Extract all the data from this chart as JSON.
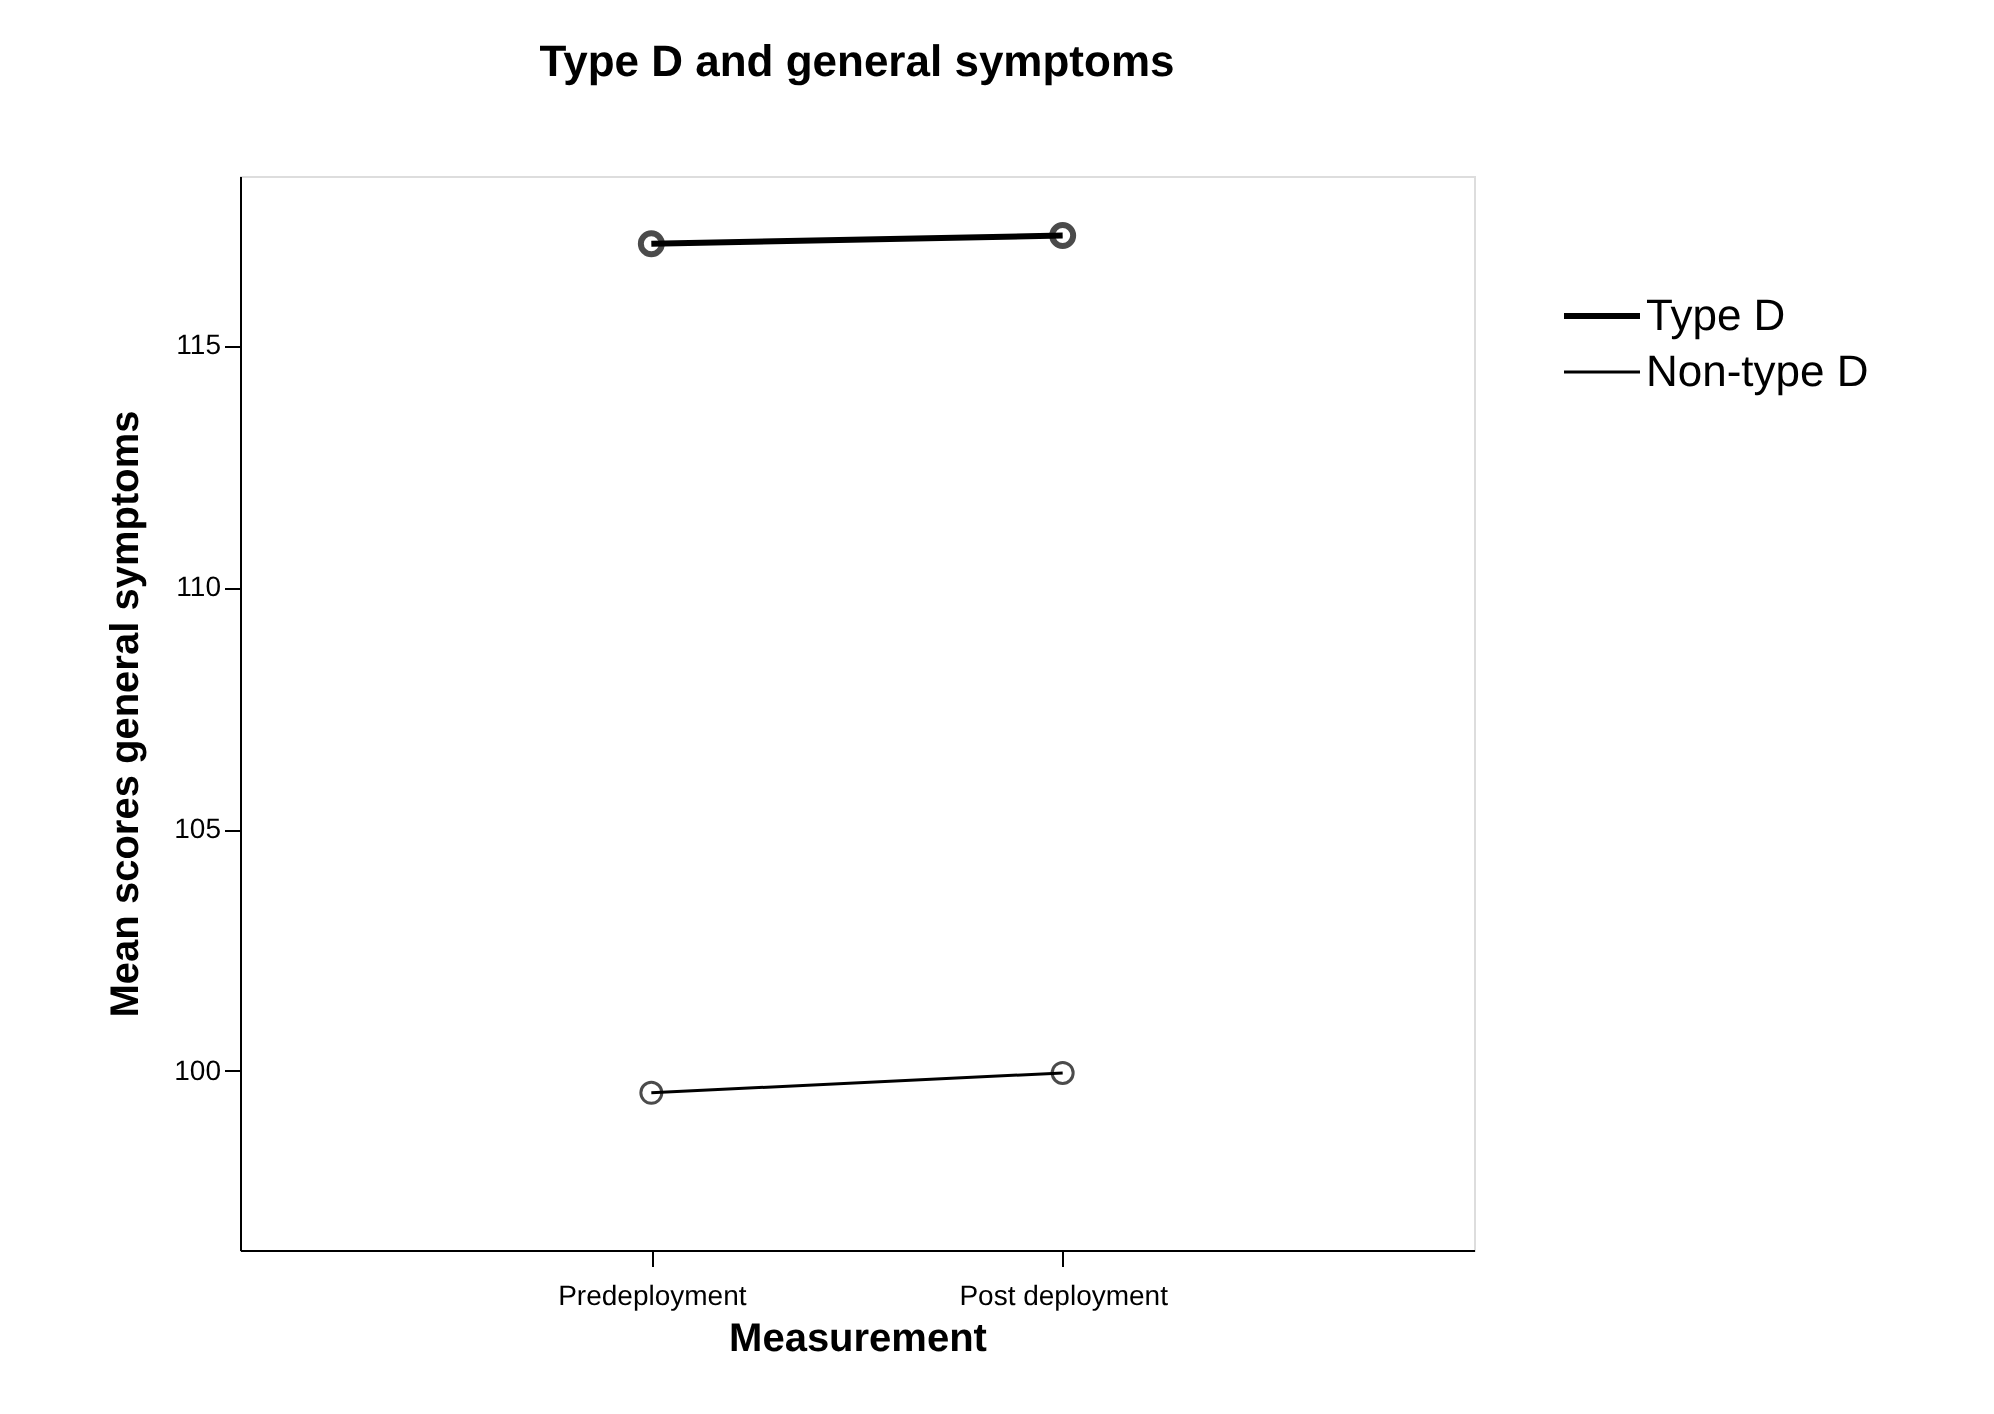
{
  "chart_data": {
    "type": "line",
    "title": "Type D and  general symptoms",
    "xlabel": "Measurement",
    "ylabel": "Mean scores general symptoms",
    "categories": [
      "Predeployment",
      "Post deployment"
    ],
    "series": [
      {
        "name": "Type D",
        "color": "#000000",
        "values": [
          117.1,
          117.27
        ]
      },
      {
        "name": "Non-type D",
        "color": "#000000",
        "values": [
          99.55,
          99.96
        ]
      }
    ],
    "ylim": [
      96.3,
      118.5
    ],
    "yticks": [
      100,
      105,
      110,
      115
    ],
    "marker": "circle",
    "line_style": "solid",
    "legend": "right",
    "grid": false
  }
}
